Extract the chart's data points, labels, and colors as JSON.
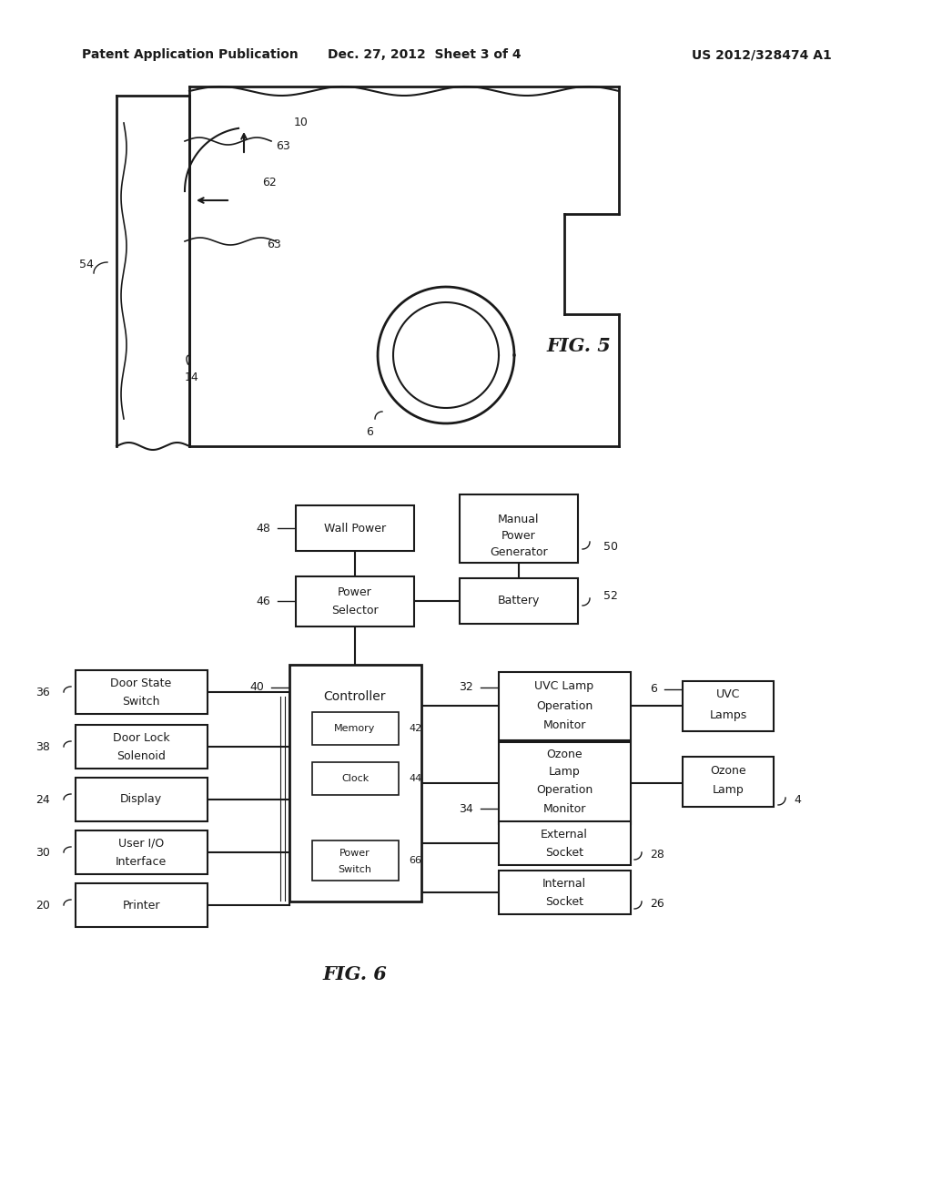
{
  "header_left": "Patent Application Publication",
  "header_mid": "Dec. 27, 2012  Sheet 3 of 4",
  "header_right": "US 2012/328474 A1",
  "fig5_label": "FIG. 5",
  "fig6_label": "FIG. 6",
  "background": "#ffffff",
  "line_color": "#1a1a1a"
}
